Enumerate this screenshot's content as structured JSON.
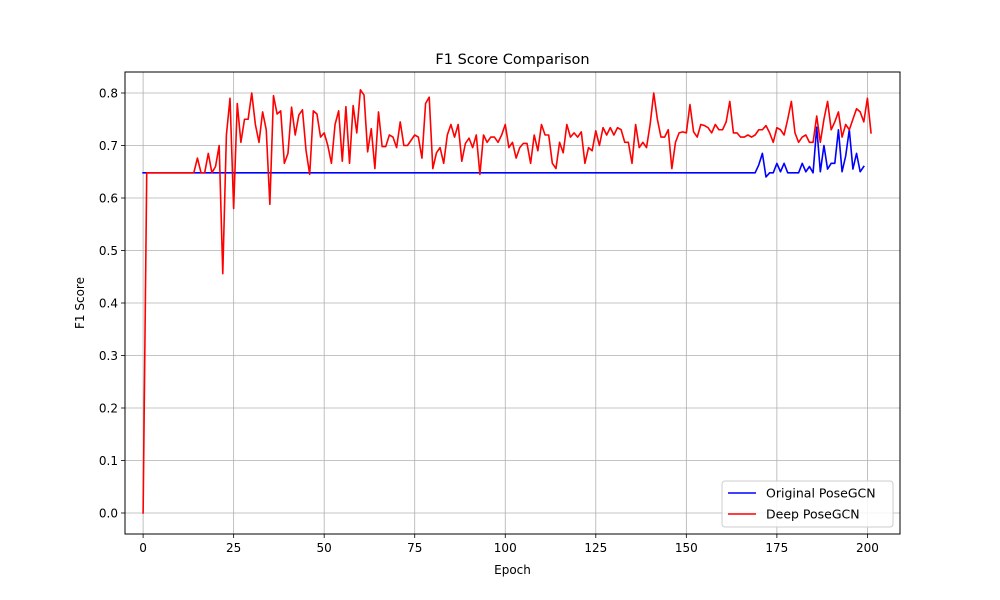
{
  "chart_data": {
    "type": "line",
    "title": "F1 Score Comparison",
    "xlabel": "Epoch",
    "ylabel": "F1 Score",
    "xlim": [
      -5,
      209
    ],
    "ylim": [
      -0.04,
      0.84
    ],
    "xticks": [
      0,
      25,
      50,
      75,
      100,
      125,
      150,
      175,
      200
    ],
    "yticks": [
      0.0,
      0.1,
      0.2,
      0.3,
      0.4,
      0.5,
      0.6,
      0.7,
      0.8
    ],
    "ytick_labels": [
      "0.0",
      "0.1",
      "0.2",
      "0.3",
      "0.4",
      "0.5",
      "0.6",
      "0.7",
      "0.8"
    ],
    "grid": true,
    "legend_position": "lower-right",
    "series": [
      {
        "name": "Original PoseGCN",
        "color": "#0000ff",
        "x_start": 0,
        "values": [
          0.648,
          0.648,
          0.648,
          0.648,
          0.648,
          0.648,
          0.648,
          0.648,
          0.648,
          0.648,
          0.648,
          0.648,
          0.648,
          0.648,
          0.648,
          0.648,
          0.648,
          0.648,
          0.648,
          0.648,
          0.648,
          0.648,
          0.648,
          0.648,
          0.648,
          0.648,
          0.648,
          0.648,
          0.648,
          0.648,
          0.648,
          0.648,
          0.648,
          0.648,
          0.648,
          0.648,
          0.648,
          0.648,
          0.648,
          0.648,
          0.648,
          0.648,
          0.648,
          0.648,
          0.648,
          0.648,
          0.648,
          0.648,
          0.648,
          0.648,
          0.648,
          0.648,
          0.648,
          0.648,
          0.648,
          0.648,
          0.648,
          0.648,
          0.648,
          0.648,
          0.648,
          0.648,
          0.648,
          0.648,
          0.648,
          0.648,
          0.648,
          0.648,
          0.648,
          0.648,
          0.648,
          0.648,
          0.648,
          0.648,
          0.648,
          0.648,
          0.648,
          0.648,
          0.648,
          0.648,
          0.648,
          0.648,
          0.648,
          0.648,
          0.648,
          0.648,
          0.648,
          0.648,
          0.648,
          0.648,
          0.648,
          0.648,
          0.648,
          0.648,
          0.648,
          0.648,
          0.648,
          0.648,
          0.648,
          0.648,
          0.648,
          0.648,
          0.648,
          0.648,
          0.648,
          0.648,
          0.648,
          0.648,
          0.648,
          0.648,
          0.648,
          0.648,
          0.648,
          0.648,
          0.648,
          0.648,
          0.648,
          0.648,
          0.648,
          0.648,
          0.648,
          0.648,
          0.648,
          0.648,
          0.648,
          0.648,
          0.648,
          0.648,
          0.648,
          0.648,
          0.648,
          0.648,
          0.648,
          0.648,
          0.648,
          0.648,
          0.648,
          0.648,
          0.648,
          0.648,
          0.648,
          0.648,
          0.648,
          0.648,
          0.648,
          0.648,
          0.648,
          0.648,
          0.648,
          0.648,
          0.648,
          0.648,
          0.648,
          0.648,
          0.648,
          0.648,
          0.648,
          0.648,
          0.648,
          0.648,
          0.648,
          0.648,
          0.648,
          0.648,
          0.648,
          0.648,
          0.648,
          0.648,
          0.648,
          0.648,
          0.663,
          0.685,
          0.64,
          0.648,
          0.648,
          0.666,
          0.65,
          0.666,
          0.648,
          0.648,
          0.648,
          0.648,
          0.666,
          0.65,
          0.66,
          0.648,
          0.735,
          0.65,
          0.7,
          0.655,
          0.666,
          0.666,
          0.73,
          0.65,
          0.68,
          0.73,
          0.655,
          0.685,
          0.65,
          0.66
        ]
      },
      {
        "name": "Deep PoseGCN",
        "color": "#ff0000",
        "x_start": 0,
        "values": [
          0.0,
          0.648,
          0.648,
          0.648,
          0.648,
          0.648,
          0.648,
          0.648,
          0.648,
          0.648,
          0.648,
          0.648,
          0.648,
          0.648,
          0.648,
          0.676,
          0.648,
          0.648,
          0.685,
          0.648,
          0.66,
          0.7,
          0.456,
          0.72,
          0.79,
          0.58,
          0.78,
          0.706,
          0.75,
          0.75,
          0.8,
          0.74,
          0.706,
          0.764,
          0.73,
          0.588,
          0.795,
          0.76,
          0.766,
          0.666,
          0.685,
          0.773,
          0.72,
          0.758,
          0.768,
          0.69,
          0.645,
          0.766,
          0.76,
          0.716,
          0.724,
          0.7,
          0.666,
          0.74,
          0.766,
          0.67,
          0.774,
          0.666,
          0.776,
          0.724,
          0.806,
          0.796,
          0.688,
          0.732,
          0.656,
          0.764,
          0.698,
          0.698,
          0.72,
          0.716,
          0.696,
          0.745,
          0.7,
          0.7,
          0.71,
          0.72,
          0.716,
          0.676,
          0.78,
          0.792,
          0.656,
          0.686,
          0.696,
          0.666,
          0.72,
          0.74,
          0.716,
          0.74,
          0.67,
          0.704,
          0.714,
          0.696,
          0.72,
          0.645,
          0.72,
          0.706,
          0.716,
          0.716,
          0.706,
          0.72,
          0.74,
          0.696,
          0.706,
          0.676,
          0.696,
          0.704,
          0.704,
          0.666,
          0.72,
          0.69,
          0.74,
          0.72,
          0.72,
          0.666,
          0.656,
          0.706,
          0.686,
          0.74,
          0.716,
          0.724,
          0.716,
          0.726,
          0.666,
          0.696,
          0.69,
          0.728,
          0.7,
          0.734,
          0.72,
          0.734,
          0.72,
          0.734,
          0.73,
          0.706,
          0.706,
          0.666,
          0.74,
          0.696,
          0.706,
          0.696,
          0.74,
          0.8,
          0.75,
          0.716,
          0.716,
          0.73,
          0.656,
          0.706,
          0.724,
          0.726,
          0.724,
          0.778,
          0.726,
          0.716,
          0.74,
          0.738,
          0.734,
          0.724,
          0.74,
          0.73,
          0.73,
          0.745,
          0.784,
          0.724,
          0.724,
          0.716,
          0.716,
          0.72,
          0.716,
          0.72,
          0.73,
          0.73,
          0.738,
          0.724,
          0.706,
          0.734,
          0.73,
          0.72,
          0.75,
          0.784,
          0.724,
          0.706,
          0.716,
          0.72,
          0.706,
          0.706,
          0.756,
          0.706,
          0.75,
          0.784,
          0.73,
          0.745,
          0.764,
          0.716,
          0.74,
          0.73,
          0.75,
          0.77,
          0.764,
          0.745,
          0.79,
          0.724
        ]
      }
    ]
  }
}
